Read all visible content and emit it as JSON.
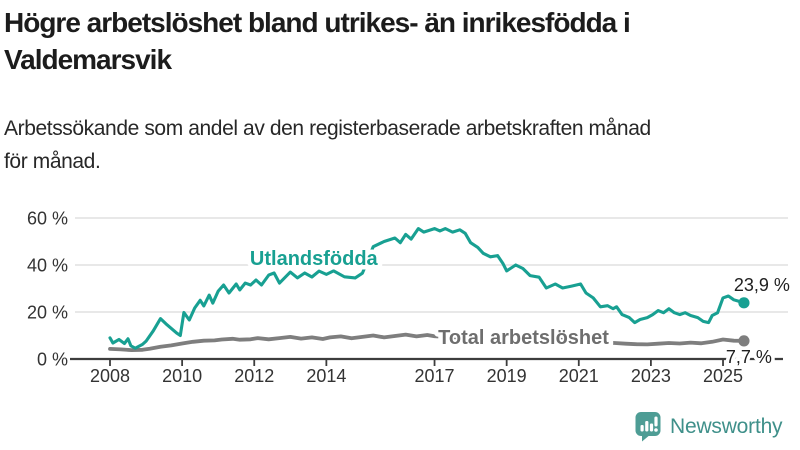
{
  "header": {
    "title": "Högre arbetslöshet bland utrikes- än inrikesfödda i\nValdemarsvik",
    "subtitle": "Arbetssökande som andel av den registerbaserade arbetskraften månad\nför månad."
  },
  "branding": {
    "name": "Newsworthy",
    "icon": "speech-bubble-bar-chart"
  },
  "colors": {
    "accent_teal": "#18a092",
    "line_gray": "#7e7e7e",
    "label_gray": "#6e6e6e",
    "grid": "#e1e1e1",
    "axis": "#3d3d3d",
    "tick_text": "#333333",
    "value_text": "#1f1f1f",
    "logo_teal": "#4e9d95"
  },
  "chart_data": {
    "type": "line",
    "title": "Högre arbetslöshet bland utrikes- än inrikesfödda i Valdemarsvik",
    "subtitle": "Arbetssökande som andel av den registerbaserade arbetskraften månad för månad.",
    "xlabel": "",
    "ylabel": "",
    "xlim": [
      2007.6,
      2026.2
    ],
    "ylim": [
      0,
      60
    ],
    "grid": "horizontal",
    "y_ticks": [
      {
        "value": 0,
        "label": "0 %"
      },
      {
        "value": 20,
        "label": "20 %"
      },
      {
        "value": 40,
        "label": "40 %"
      },
      {
        "value": 60,
        "label": "60 %"
      }
    ],
    "x_ticks": [
      {
        "value": 2008,
        "label": "2008"
      },
      {
        "value": 2010,
        "label": "2010"
      },
      {
        "value": 2012,
        "label": "2012"
      },
      {
        "value": 2014,
        "label": "2014"
      },
      {
        "value": 2017,
        "label": "2017"
      },
      {
        "value": 2019,
        "label": "2019"
      },
      {
        "value": 2021,
        "label": "2021"
      },
      {
        "value": 2023,
        "label": "2023"
      },
      {
        "value": 2025,
        "label": "2025"
      }
    ],
    "series": [
      {
        "name": "Total arbetslöshet",
        "color": "#7e7e7e",
        "label": {
          "text": "Total arbetslöshet",
          "x": 2017.1,
          "y": 6.4,
          "anchor": "start",
          "color": "#6e6e6e"
        },
        "end_label": "7,7 %",
        "end_value": 7.7,
        "points": [
          [
            2008.0,
            4.3
          ],
          [
            2008.3,
            4.1
          ],
          [
            2008.6,
            3.8
          ],
          [
            2008.9,
            3.9
          ],
          [
            2009.1,
            4.4
          ],
          [
            2009.4,
            5.2
          ],
          [
            2009.7,
            5.8
          ],
          [
            2010.0,
            6.6
          ],
          [
            2010.3,
            7.3
          ],
          [
            2010.6,
            7.8
          ],
          [
            2010.9,
            7.9
          ],
          [
            2011.1,
            8.3
          ],
          [
            2011.4,
            8.6
          ],
          [
            2011.6,
            8.2
          ],
          [
            2011.9,
            8.4
          ],
          [
            2012.1,
            8.9
          ],
          [
            2012.4,
            8.4
          ],
          [
            2012.7,
            8.9
          ],
          [
            2013.0,
            9.4
          ],
          [
            2013.3,
            8.7
          ],
          [
            2013.6,
            9.2
          ],
          [
            2013.9,
            8.5
          ],
          [
            2014.1,
            9.2
          ],
          [
            2014.4,
            9.6
          ],
          [
            2014.7,
            8.8
          ],
          [
            2015.0,
            9.4
          ],
          [
            2015.3,
            10.0
          ],
          [
            2015.6,
            9.2
          ],
          [
            2015.9,
            9.8
          ],
          [
            2016.2,
            10.4
          ],
          [
            2016.5,
            9.6
          ],
          [
            2016.8,
            10.2
          ],
          [
            2017.0,
            9.7
          ],
          [
            2017.5,
            9.2
          ],
          [
            2018.0,
            8.8
          ],
          [
            2018.5,
            8.5
          ],
          [
            2019.0,
            8.3
          ],
          [
            2019.5,
            8.0
          ],
          [
            2020.0,
            8.5
          ],
          [
            2020.5,
            8.2
          ],
          [
            2021.0,
            7.8
          ],
          [
            2021.5,
            7.2
          ],
          [
            2022.0,
            6.8
          ],
          [
            2022.3,
            6.5
          ],
          [
            2022.6,
            6.3
          ],
          [
            2022.9,
            6.2
          ],
          [
            2023.2,
            6.5
          ],
          [
            2023.5,
            6.8
          ],
          [
            2023.8,
            6.6
          ],
          [
            2024.1,
            7.0
          ],
          [
            2024.4,
            6.7
          ],
          [
            2024.7,
            7.3
          ],
          [
            2025.0,
            8.3
          ],
          [
            2025.3,
            7.8
          ],
          [
            2025.58,
            7.7
          ]
        ]
      },
      {
        "name": "Utlandsfödda",
        "color": "#18a092",
        "label": {
          "text": "Utlandsfödda",
          "x": 2011.88,
          "y": 40.0,
          "anchor": "start",
          "color": "#18a092"
        },
        "end_label": "23,9 %",
        "end_value": 23.9,
        "points": [
          [
            2008.0,
            9.0
          ],
          [
            2008.08,
            6.8
          ],
          [
            2008.25,
            8.3
          ],
          [
            2008.4,
            6.6
          ],
          [
            2008.5,
            8.6
          ],
          [
            2008.58,
            5.6
          ],
          [
            2008.7,
            4.6
          ],
          [
            2008.9,
            6.2
          ],
          [
            2009.0,
            7.6
          ],
          [
            2009.2,
            12.0
          ],
          [
            2009.4,
            17.2
          ],
          [
            2009.55,
            15.0
          ],
          [
            2009.7,
            13.0
          ],
          [
            2009.85,
            11.0
          ],
          [
            2009.95,
            10.0
          ],
          [
            2010.05,
            19.8
          ],
          [
            2010.2,
            16.6
          ],
          [
            2010.35,
            21.7
          ],
          [
            2010.5,
            25.0
          ],
          [
            2010.6,
            22.6
          ],
          [
            2010.75,
            27.2
          ],
          [
            2010.85,
            23.8
          ],
          [
            2011.0,
            28.9
          ],
          [
            2011.15,
            31.5
          ],
          [
            2011.3,
            28.1
          ],
          [
            2011.5,
            31.9
          ],
          [
            2011.6,
            29.4
          ],
          [
            2011.75,
            32.3
          ],
          [
            2011.9,
            31.5
          ],
          [
            2012.05,
            33.6
          ],
          [
            2012.2,
            31.5
          ],
          [
            2012.4,
            35.7
          ],
          [
            2012.55,
            36.6
          ],
          [
            2012.7,
            32.3
          ],
          [
            2013.0,
            37.0
          ],
          [
            2013.2,
            34.5
          ],
          [
            2013.4,
            36.6
          ],
          [
            2013.6,
            34.9
          ],
          [
            2013.8,
            37.4
          ],
          [
            2014.0,
            36.0
          ],
          [
            2014.2,
            37.5
          ],
          [
            2014.5,
            35.0
          ],
          [
            2014.8,
            34.5
          ],
          [
            2015.0,
            36.5
          ],
          [
            2015.15,
            42.0
          ],
          [
            2015.3,
            47.8
          ],
          [
            2015.6,
            50.0
          ],
          [
            2015.9,
            51.5
          ],
          [
            2016.05,
            49.5
          ],
          [
            2016.2,
            53.0
          ],
          [
            2016.35,
            51.0
          ],
          [
            2016.55,
            55.5
          ],
          [
            2016.7,
            54.0
          ],
          [
            2017.0,
            55.5
          ],
          [
            2017.15,
            54.5
          ],
          [
            2017.3,
            55.5
          ],
          [
            2017.5,
            54.0
          ],
          [
            2017.7,
            55.0
          ],
          [
            2017.85,
            53.5
          ],
          [
            2018.0,
            49.5
          ],
          [
            2018.2,
            47.5
          ],
          [
            2018.35,
            45.0
          ],
          [
            2018.55,
            43.5
          ],
          [
            2018.75,
            44.0
          ],
          [
            2018.9,
            40.5
          ],
          [
            2019.0,
            37.5
          ],
          [
            2019.25,
            40.0
          ],
          [
            2019.45,
            38.5
          ],
          [
            2019.65,
            35.5
          ],
          [
            2019.9,
            34.8
          ],
          [
            2020.1,
            30.2
          ],
          [
            2020.35,
            31.9
          ],
          [
            2020.55,
            30.2
          ],
          [
            2020.8,
            31.0
          ],
          [
            2021.05,
            31.9
          ],
          [
            2021.2,
            28.1
          ],
          [
            2021.4,
            26.0
          ],
          [
            2021.6,
            22.2
          ],
          [
            2021.8,
            22.7
          ],
          [
            2021.95,
            21.4
          ],
          [
            2022.05,
            22.2
          ],
          [
            2022.2,
            18.9
          ],
          [
            2022.4,
            17.6
          ],
          [
            2022.55,
            15.5
          ],
          [
            2022.7,
            16.8
          ],
          [
            2022.9,
            17.6
          ],
          [
            2023.05,
            18.9
          ],
          [
            2023.2,
            20.6
          ],
          [
            2023.35,
            19.7
          ],
          [
            2023.5,
            21.4
          ],
          [
            2023.65,
            19.7
          ],
          [
            2023.8,
            18.9
          ],
          [
            2023.95,
            19.7
          ],
          [
            2024.1,
            18.5
          ],
          [
            2024.3,
            17.6
          ],
          [
            2024.45,
            16.0
          ],
          [
            2024.6,
            15.5
          ],
          [
            2024.7,
            18.5
          ],
          [
            2024.85,
            19.7
          ],
          [
            2025.0,
            26.0
          ],
          [
            2025.15,
            26.8
          ],
          [
            2025.3,
            25.2
          ],
          [
            2025.45,
            24.5
          ],
          [
            2025.58,
            23.9
          ]
        ]
      }
    ],
    "legend_position": "inline-labels"
  }
}
